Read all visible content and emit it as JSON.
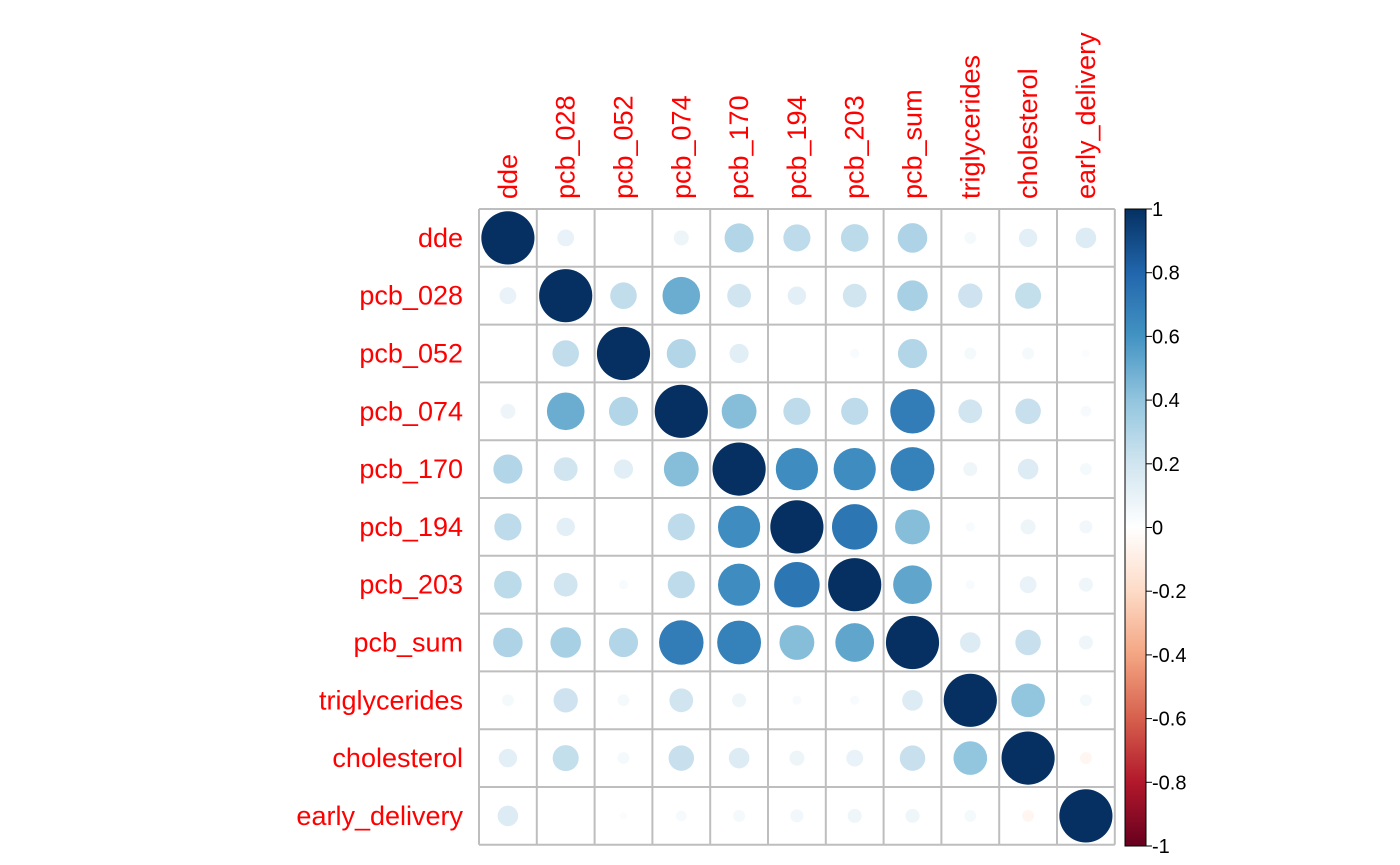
{
  "chart_data": {
    "type": "heatmap",
    "method": "circle",
    "variables": [
      "dde",
      "pcb_028",
      "pcb_052",
      "pcb_074",
      "pcb_170",
      "pcb_194",
      "pcb_203",
      "pcb_sum",
      "triglycerides",
      "cholesterol",
      "early_delivery"
    ],
    "matrix": [
      [
        1.0,
        0.1,
        0.0,
        0.08,
        0.3,
        0.26,
        0.27,
        0.31,
        0.05,
        0.12,
        0.15
      ],
      [
        0.1,
        1.0,
        0.25,
        0.5,
        0.2,
        0.12,
        0.2,
        0.33,
        0.21,
        0.24,
        0.0
      ],
      [
        0.0,
        0.25,
        1.0,
        0.3,
        0.13,
        0.0,
        0.03,
        0.3,
        0.05,
        0.05,
        0.02
      ],
      [
        0.08,
        0.5,
        0.3,
        1.0,
        0.43,
        0.26,
        0.26,
        0.7,
        0.2,
        0.23,
        0.04
      ],
      [
        0.3,
        0.2,
        0.13,
        0.43,
        1.0,
        0.63,
        0.63,
        0.68,
        0.07,
        0.15,
        0.05
      ],
      [
        0.26,
        0.12,
        0.0,
        0.26,
        0.63,
        1.0,
        0.73,
        0.43,
        0.03,
        0.08,
        0.06
      ],
      [
        0.27,
        0.2,
        0.03,
        0.26,
        0.63,
        0.73,
        1.0,
        0.53,
        0.03,
        0.1,
        0.07
      ],
      [
        0.31,
        0.33,
        0.3,
        0.7,
        0.68,
        0.43,
        0.53,
        1.0,
        0.15,
        0.23,
        0.07
      ],
      [
        0.05,
        0.21,
        0.05,
        0.2,
        0.07,
        0.03,
        0.03,
        0.15,
        1.0,
        0.4,
        0.05
      ],
      [
        0.12,
        0.24,
        0.05,
        0.23,
        0.15,
        0.08,
        0.1,
        0.23,
        0.4,
        1.0,
        -0.05
      ],
      [
        0.15,
        0.0,
        0.02,
        0.04,
        0.05,
        0.06,
        0.07,
        0.07,
        0.05,
        -0.05,
        1.0
      ]
    ],
    "colorbar": {
      "min": -1,
      "max": 1,
      "ticks": [
        "1",
        "0.8",
        "0.6",
        "0.4",
        "0.2",
        "0",
        "-0.2",
        "-0.4",
        "-0.6",
        "-0.8",
        "-1"
      ],
      "tick_values": [
        1,
        0.8,
        0.6,
        0.4,
        0.2,
        0,
        -0.2,
        -0.4,
        -0.6,
        -0.8,
        -1
      ],
      "colors": [
        "#67001F",
        "#B2182B",
        "#D6604D",
        "#F4A582",
        "#FDDBC7",
        "#FFFFFF",
        "#D1E5F0",
        "#92C5DE",
        "#4393C3",
        "#2166AC",
        "#053061"
      ]
    },
    "label_color": "#FF0000",
    "grid_color": "#BEBEBE",
    "grid": true,
    "legend_placement": "right"
  }
}
